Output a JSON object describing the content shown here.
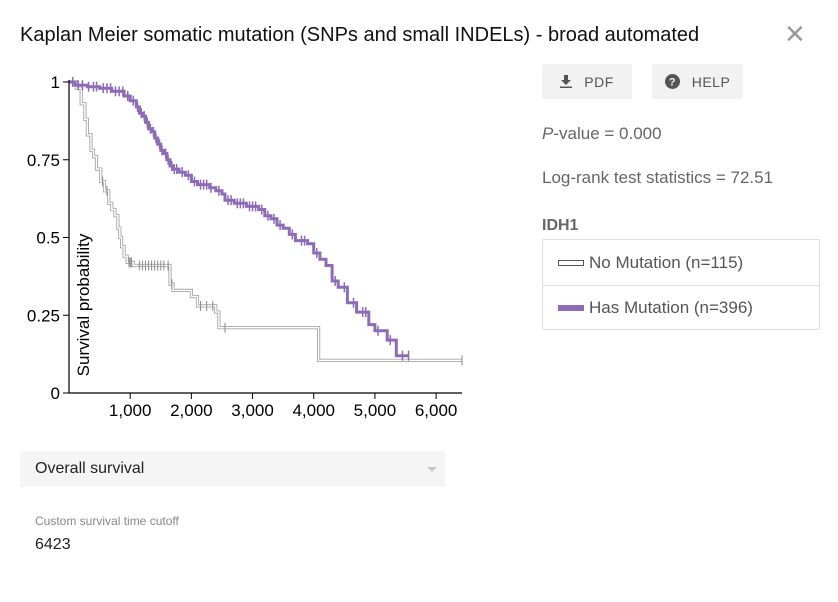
{
  "modal": {
    "title": "Kaplan Meier somatic mutation (SNPs and small INDELs) - broad automated",
    "close_icon": "close-icon"
  },
  "buttons": {
    "pdf": {
      "label": "PDF",
      "icon": "download-icon"
    },
    "help": {
      "label": "HELP",
      "icon": "help-circle-icon"
    }
  },
  "stats": {
    "p_label": "P",
    "p_rest": "-value = 0.000",
    "logrank": "Log-rank test statistics = 72.51"
  },
  "legend": {
    "title": "IDH1",
    "items": [
      {
        "label": "No Mutation (n=115)"
      },
      {
        "label": "Has Mutation (n=396)"
      }
    ]
  },
  "controls": {
    "survival_select": "Overall survival",
    "cutoff_label": "Custom survival time cutoff",
    "cutoff_value": "6423"
  },
  "colors": {
    "has_mutation": "#8e6bb7",
    "no_mutation": "#a6a6a6",
    "axis": "#000000"
  },
  "chart_data": {
    "type": "line",
    "title": "",
    "xlabel": "",
    "ylabel": "Survival probability",
    "xlim": [
      0,
      6423
    ],
    "ylim": [
      0,
      1
    ],
    "x_ticks": [
      1000,
      2000,
      3000,
      4000,
      5000,
      6000
    ],
    "x_tick_labels": [
      "1,000",
      "2,000",
      "3,000",
      "4,000",
      "5,000",
      "6,000"
    ],
    "y_ticks": [
      0,
      0.25,
      0.5,
      0.75,
      1
    ],
    "y_tick_labels": [
      "0",
      "0.25",
      "0.5",
      "0.75",
      "1"
    ],
    "grid": false,
    "series": [
      {
        "name": "No Mutation (n=115)",
        "points": [
          [
            0,
            1
          ],
          [
            120,
            0.98
          ],
          [
            200,
            0.93
          ],
          [
            260,
            0.88
          ],
          [
            300,
            0.83
          ],
          [
            360,
            0.78
          ],
          [
            400,
            0.76
          ],
          [
            450,
            0.72
          ],
          [
            520,
            0.68
          ],
          [
            580,
            0.65
          ],
          [
            650,
            0.61
          ],
          [
            700,
            0.59
          ],
          [
            750,
            0.57
          ],
          [
            800,
            0.53
          ],
          [
            830,
            0.5
          ],
          [
            860,
            0.47
          ],
          [
            900,
            0.44
          ],
          [
            950,
            0.42
          ],
          [
            1050,
            0.41
          ],
          [
            1600,
            0.41
          ],
          [
            1650,
            0.35
          ],
          [
            1700,
            0.33
          ],
          [
            2000,
            0.31
          ],
          [
            2100,
            0.28
          ],
          [
            2400,
            0.26
          ],
          [
            2450,
            0.21
          ],
          [
            2550,
            0.21
          ],
          [
            4050,
            0.21
          ],
          [
            4080,
            0.105
          ],
          [
            6423,
            0.105
          ]
        ],
        "censored": [
          550,
          620,
          980,
          1000,
          1020,
          1150,
          1200,
          1250,
          1300,
          1350,
          1400,
          1450,
          1500,
          1550,
          1620,
          1680,
          2150,
          2250,
          2350,
          2550,
          6423
        ]
      },
      {
        "name": "Has Mutation (n=396)",
        "points": [
          [
            0,
            1
          ],
          [
            100,
            0.99
          ],
          [
            300,
            0.985
          ],
          [
            500,
            0.98
          ],
          [
            700,
            0.97
          ],
          [
            900,
            0.955
          ],
          [
            1000,
            0.94
          ],
          [
            1100,
            0.92
          ],
          [
            1150,
            0.9
          ],
          [
            1200,
            0.89
          ],
          [
            1250,
            0.87
          ],
          [
            1300,
            0.85
          ],
          [
            1350,
            0.84
          ],
          [
            1400,
            0.82
          ],
          [
            1450,
            0.8
          ],
          [
            1500,
            0.78
          ],
          [
            1550,
            0.77
          ],
          [
            1600,
            0.75
          ],
          [
            1650,
            0.73
          ],
          [
            1700,
            0.72
          ],
          [
            1800,
            0.71
          ],
          [
            1900,
            0.7
          ],
          [
            2000,
            0.68
          ],
          [
            2100,
            0.67
          ],
          [
            2300,
            0.66
          ],
          [
            2400,
            0.65
          ],
          [
            2500,
            0.64
          ],
          [
            2550,
            0.62
          ],
          [
            2700,
            0.61
          ],
          [
            2900,
            0.6
          ],
          [
            3100,
            0.59
          ],
          [
            3200,
            0.57
          ],
          [
            3300,
            0.56
          ],
          [
            3400,
            0.54
          ],
          [
            3500,
            0.53
          ],
          [
            3600,
            0.51
          ],
          [
            3700,
            0.49
          ],
          [
            3900,
            0.48
          ],
          [
            4000,
            0.45
          ],
          [
            4100,
            0.43
          ],
          [
            4200,
            0.41
          ],
          [
            4300,
            0.36
          ],
          [
            4400,
            0.34
          ],
          [
            4550,
            0.29
          ],
          [
            4700,
            0.26
          ],
          [
            4900,
            0.22
          ],
          [
            5000,
            0.2
          ],
          [
            5200,
            0.17
          ],
          [
            5350,
            0.12
          ],
          [
            5550,
            0.12
          ]
        ],
        "censored": [
          60,
          150,
          220,
          320,
          400,
          450,
          560,
          620,
          680,
          760,
          820,
          880,
          960,
          1050,
          1120,
          1180,
          1230,
          1280,
          1330,
          1380,
          1420,
          1480,
          1520,
          1580,
          1620,
          1680,
          1720,
          1760,
          1850,
          1950,
          2050,
          2150,
          2200,
          2250,
          2320,
          2450,
          2600,
          2650,
          2750,
          2800,
          2850,
          2950,
          3000,
          3050,
          3150,
          3250,
          3350,
          3450,
          3650,
          3800,
          3850,
          4050,
          4350,
          4500,
          4650,
          4800,
          4850,
          5050,
          5250,
          5450,
          5550
        ]
      }
    ]
  }
}
